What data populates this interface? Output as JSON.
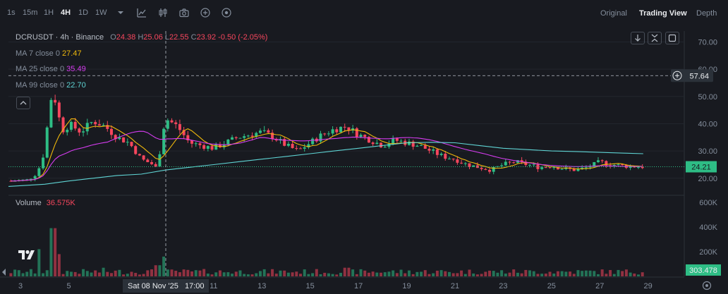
{
  "toolbar": {
    "timeframes": [
      "1s",
      "15m",
      "1H",
      "4H",
      "1D",
      "1W"
    ],
    "active_timeframe": "4H",
    "views": [
      "Original",
      "Trading View",
      "Depth"
    ],
    "active_view": "Trading View",
    "icons": [
      "chevron-down-icon",
      "indicator-icon",
      "candle-style-icon",
      "camera-icon",
      "plus-circle-icon",
      "settings-circle-icon"
    ]
  },
  "legend": {
    "symbol": "DCRUSDT · 4h · Binance",
    "o_label": "O",
    "o": "24.38",
    "h_label": "H",
    "h": "25.06",
    "l_label": "L",
    "l": "22.55",
    "c_label": "C",
    "c": "23.92",
    "change": "-0.50 (-2.05%)",
    "ma7_label": "MA 7 close 0",
    "ma7": "27.47",
    "ma25_label": "MA 25 close 0",
    "ma25": "35.49",
    "ma99_label": "MA 99 close 0",
    "ma99": "22.70",
    "volume_label": "Volume",
    "volume": "36.575K"
  },
  "crosshair": {
    "price_label": "57.64",
    "time_label": "Sat 08 Nov '25",
    "time_label2": "17:00"
  },
  "last_price_label": "24.21",
  "last_volume_label": "303.478",
  "colors": {
    "up": "#2ebd85",
    "down": "#f6465d",
    "ma7": "#f0b90b",
    "ma25": "#d63cf0",
    "ma99": "#5fd4d4",
    "bg": "#181a20"
  },
  "chart_data": {
    "type": "candlestick",
    "price_axis_ticks": [
      70,
      60,
      50,
      40,
      30,
      20
    ],
    "price_axis_labels": [
      "70.00",
      "60.00",
      "50.00",
      "40.00",
      "30.00",
      "20.00"
    ],
    "volume_axis_labels": [
      "600K",
      "400K",
      "200K"
    ],
    "volume_axis_ticks": [
      600000,
      400000,
      200000
    ],
    "x_tick_labels": [
      "3",
      "5",
      "11",
      "13",
      "15",
      "17",
      "19",
      "21",
      "23",
      "25",
      "27",
      "29"
    ],
    "x_tick_days": [
      3,
      5,
      11,
      13,
      15,
      17,
      19,
      21,
      23,
      25,
      27,
      29
    ],
    "price_range": [
      14,
      74
    ],
    "volume_range": [
      0,
      650000
    ],
    "day_range": [
      2.5,
      30.5
    ],
    "key_points": [
      [
        2.6,
        19.0
      ],
      [
        3.3,
        19.4
      ],
      [
        3.7,
        22
      ],
      [
        4.0,
        30
      ],
      [
        4.2,
        47
      ],
      [
        4.35,
        52
      ],
      [
        4.6,
        42
      ],
      [
        4.8,
        37
      ],
      [
        5.0,
        40
      ],
      [
        5.5,
        37
      ],
      [
        6.0,
        41
      ],
      [
        6.5,
        39
      ],
      [
        7.0,
        35
      ],
      [
        7.5,
        33
      ],
      [
        8.0,
        27
      ],
      [
        8.5,
        25
      ],
      [
        8.7,
        23
      ],
      [
        8.8,
        33
      ],
      [
        9.0,
        42
      ],
      [
        9.5,
        39
      ],
      [
        10.0,
        33
      ],
      [
        10.5,
        32
      ],
      [
        11.0,
        31
      ],
      [
        11.5,
        33
      ],
      [
        12.0,
        35
      ],
      [
        12.5,
        36
      ],
      [
        13.0,
        37
      ],
      [
        13.5,
        35
      ],
      [
        14.0,
        32
      ],
      [
        14.5,
        30
      ],
      [
        15.0,
        33
      ],
      [
        15.5,
        36
      ],
      [
        16.0,
        38
      ],
      [
        16.5,
        39
      ],
      [
        17.0,
        36
      ],
      [
        17.5,
        34
      ],
      [
        18.0,
        32
      ],
      [
        18.5,
        34
      ],
      [
        19.0,
        33
      ],
      [
        19.5,
        32
      ],
      [
        20.0,
        30
      ],
      [
        20.5,
        28
      ],
      [
        21.0,
        27
      ],
      [
        21.5,
        25
      ],
      [
        22.0,
        24
      ],
      [
        22.5,
        23
      ],
      [
        23.0,
        25
      ],
      [
        23.5,
        26
      ],
      [
        24.0,
        25
      ],
      [
        24.5,
        24
      ],
      [
        25.0,
        24.5
      ],
      [
        25.5,
        23.5
      ],
      [
        26.0,
        23
      ],
      [
        26.5,
        24
      ],
      [
        27.0,
        26
      ],
      [
        27.5,
        25
      ],
      [
        28.0,
        24.5
      ],
      [
        28.8,
        24.2
      ]
    ],
    "ma99_points": [
      [
        2.5,
        17.0
      ],
      [
        4.0,
        17.8
      ],
      [
        5.0,
        19
      ],
      [
        6.0,
        20
      ],
      [
        7.0,
        21
      ],
      [
        8.0,
        21.5
      ],
      [
        9.0,
        23
      ],
      [
        10.0,
        24
      ],
      [
        11.0,
        25
      ],
      [
        12.0,
        26
      ],
      [
        13.0,
        27
      ],
      [
        14.0,
        28
      ],
      [
        15.0,
        29
      ],
      [
        16.0,
        30
      ],
      [
        17.0,
        31
      ],
      [
        18.0,
        32
      ],
      [
        19.0,
        33
      ],
      [
        20.0,
        33.2
      ],
      [
        21.0,
        33
      ],
      [
        22.0,
        32
      ],
      [
        23.0,
        31
      ],
      [
        24.0,
        30.5
      ],
      [
        25.0,
        30
      ],
      [
        26.0,
        29.8
      ],
      [
        27.0,
        29.5
      ],
      [
        28.0,
        29.2
      ],
      [
        28.8,
        29
      ]
    ],
    "volume_spikes": [
      [
        4.2,
        520000
      ],
      [
        4.35,
        390000
      ],
      [
        3.8,
        220000
      ],
      [
        4.6,
        180000
      ],
      [
        8.8,
        400000
      ],
      [
        8.95,
        160000
      ],
      [
        8.7,
        90000
      ],
      [
        16.5,
        70000
      ],
      [
        6.5,
        70000
      ]
    ]
  }
}
